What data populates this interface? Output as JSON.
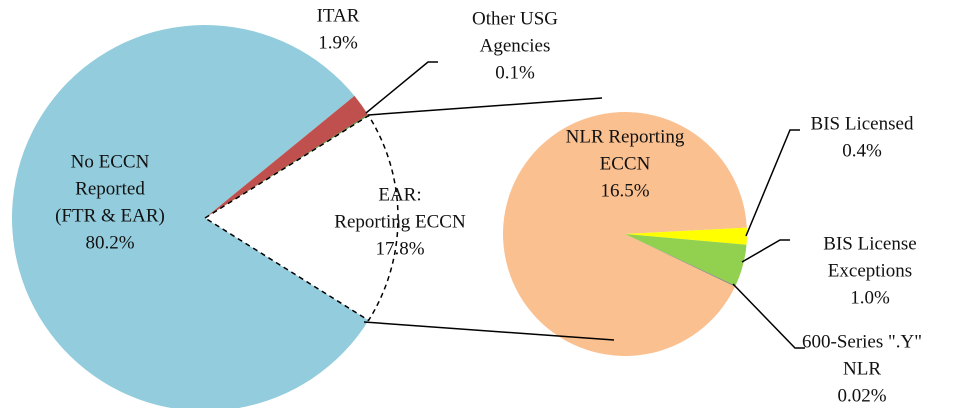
{
  "chart_data": {
    "type": "pie-of-pie",
    "pies": [
      {
        "labels": [
          [
            "No ECCN",
            "Reported",
            "(FTR & EAR)"
          ],
          [
            "ITAR"
          ],
          [
            "Other USG",
            "Agencies"
          ],
          [
            "EAR:",
            "Reporting ECCN"
          ]
        ],
        "values": [
          80.2,
          1.9,
          0.1,
          17.8
        ],
        "value_labels": [
          "80.2%",
          "1.9%",
          "0.1%",
          "17.8%"
        ],
        "colors": [
          "#93cddd",
          "#c0504d",
          "#4f9a3c",
          "#ffffff"
        ]
      },
      {
        "labels": [
          [
            "NLR Reporting",
            "ECCN"
          ],
          [
            "BIS Licensed"
          ],
          [
            "BIS License",
            "Exceptions"
          ],
          [
            "600-Series \".Y\"",
            "NLR"
          ]
        ],
        "values": [
          16.5,
          0.4,
          1.0,
          0.02
        ],
        "value_labels": [
          "16.5%",
          "0.4%",
          "1.0%",
          "0.02%"
        ],
        "colors": [
          "#fac090",
          "#ffff00",
          "#92d050",
          "#7f7f7f"
        ]
      }
    ]
  }
}
